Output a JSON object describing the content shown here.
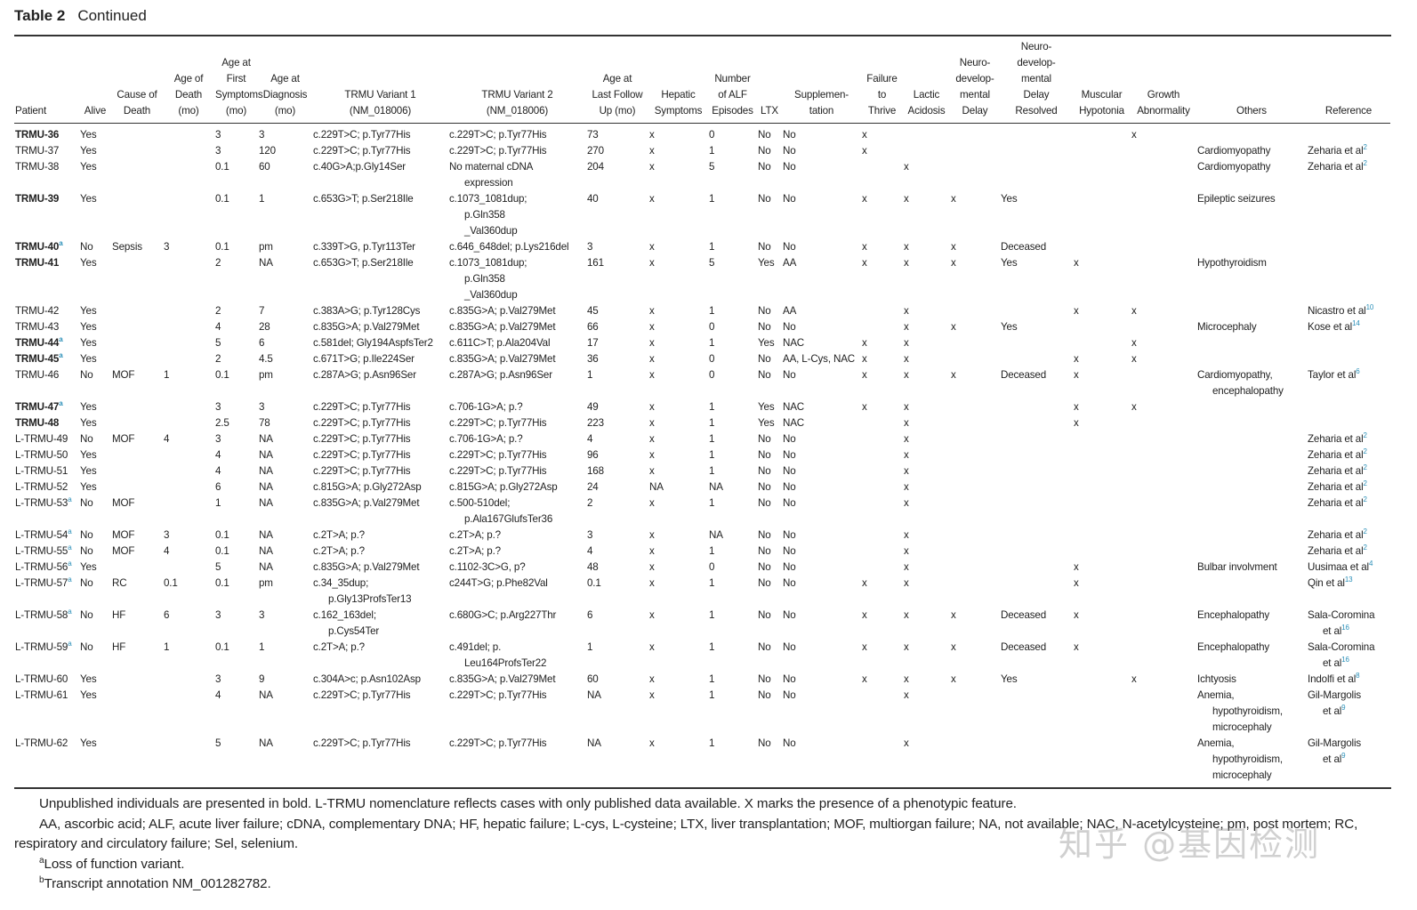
{
  "title": {
    "label": "Table 2",
    "subtitle": "Continued"
  },
  "headers": [
    "Patient",
    "Alive",
    "Cause of\nDeath",
    "Age of\nDeath\n(mo)",
    "Age at\nFirst\nSymptoms\n(mo)",
    "Age at\nDiagnosis\n(mo)",
    "TRMU Variant 1\n(NM_018006)",
    "TRMU Variant 2\n(NM_018006)",
    "Age at\nLast Follow\nUp (mo)",
    "Hepatic\nSymptoms",
    "Number\nof ALF\nEpisodes",
    "LTX",
    "Supplemen-\ntation",
    "Failure\nto\nThrive",
    "Lactic\nAcidosis",
    "Neuro-\ndevelop-\nmental\nDelay",
    "Neuro-\ndevelop-\nmental\nDelay\nResolved",
    "Muscular\nHypotonia",
    "Growth\nAbnormality",
    "Others",
    "Reference"
  ],
  "rows": [
    {
      "patient": "TRMU-36",
      "bold": true,
      "sup": "",
      "cells": [
        "Yes",
        "",
        "",
        "3",
        "3",
        "c.229T>C; p.Tyr77His",
        "c.229T>C; p.Tyr77His",
        "73",
        "x",
        "0",
        "No",
        "No",
        "x",
        "",
        "",
        "",
        "",
        "x",
        ""
      ],
      "ref": "",
      "ref_sup": ""
    },
    {
      "patient": "TRMU-37",
      "bold": false,
      "sup": "",
      "cells": [
        "Yes",
        "",
        "",
        "3",
        "120",
        "c.229T>C; p.Tyr77His",
        "c.229T>C; p.Tyr77His",
        "270",
        "x",
        "1",
        "No",
        "No",
        "x",
        "",
        "",
        "",
        "",
        "",
        "Cardiomyopathy"
      ],
      "ref": "Zeharia et al",
      "ref_sup": "2"
    },
    {
      "patient": "TRMU-38",
      "bold": false,
      "sup": "",
      "cells": [
        "Yes",
        "",
        "",
        "0.1",
        "60",
        "c.40G>A;p.Gly14Ser",
        "No maternal cDNA\nexpression",
        "204",
        "x",
        "5",
        "No",
        "No",
        "",
        "x",
        "",
        "",
        "",
        "",
        "Cardiomyopathy"
      ],
      "ref": "Zeharia et al",
      "ref_sup": "2"
    },
    {
      "patient": "TRMU-39",
      "bold": true,
      "sup": "",
      "cells": [
        "Yes",
        "",
        "",
        "0.1",
        "1",
        "c.653G>T; p.Ser218Ile",
        "c.1073_1081dup;\np.Gln358\n_Val360dup",
        "40",
        "x",
        "1",
        "No",
        "No",
        "x",
        "x",
        "x",
        "Yes",
        "",
        "",
        "Epileptic seizures"
      ],
      "ref": "",
      "ref_sup": ""
    },
    {
      "patient": "TRMU-40",
      "bold": true,
      "sup": "a",
      "cells": [
        "No",
        "Sepsis",
        "3",
        "0.1",
        "pm",
        "c.339T>G, p.Tyr113Ter",
        "c.646_648del; p.Lys216del",
        "3",
        "x",
        "1",
        "No",
        "No",
        "x",
        "x",
        "x",
        "Deceased",
        "",
        "",
        ""
      ],
      "ref": "",
      "ref_sup": ""
    },
    {
      "patient": "TRMU-41",
      "bold": true,
      "sup": "",
      "cells": [
        "Yes",
        "",
        "",
        "2",
        "NA",
        "c.653G>T; p.Ser218Ile",
        "c.1073_1081dup;\np.Gln358\n_Val360dup",
        "161",
        "x",
        "5",
        "Yes",
        "AA",
        "x",
        "x",
        "x",
        "Yes",
        "x",
        "",
        "Hypothyroidism"
      ],
      "ref": "",
      "ref_sup": ""
    },
    {
      "patient": "TRMU-42",
      "bold": false,
      "sup": "",
      "cells": [
        "Yes",
        "",
        "",
        "2",
        "7",
        "c.383A>G; p.Tyr128Cys",
        "c.835G>A; p.Val279Met",
        "45",
        "x",
        "1",
        "No",
        "AA",
        "",
        "x",
        "",
        "",
        "x",
        "x",
        ""
      ],
      "ref": "Nicastro et al",
      "ref_sup": "10"
    },
    {
      "patient": "TRMU-43",
      "bold": false,
      "sup": "",
      "cells": [
        "Yes",
        "",
        "",
        "4",
        "28",
        "c.835G>A; p.Val279Met",
        "c.835G>A; p.Val279Met",
        "66",
        "x",
        "0",
        "No",
        "No",
        "",
        "x",
        "x",
        "Yes",
        "",
        "",
        "Microcephaly"
      ],
      "ref": "Kose et al",
      "ref_sup": "14"
    },
    {
      "patient": "TRMU-44",
      "bold": true,
      "sup": "a",
      "cells": [
        "Yes",
        "",
        "",
        "5",
        "6",
        "c.581del; Gly194AspfsTer2",
        "c.611C>T; p.Ala204Val",
        "17",
        "x",
        "1",
        "Yes",
        "NAC",
        "x",
        "x",
        "",
        "",
        "",
        "x",
        ""
      ],
      "ref": "",
      "ref_sup": ""
    },
    {
      "patient": "TRMU-45",
      "bold": true,
      "sup": "a",
      "cells": [
        "Yes",
        "",
        "",
        "2",
        "4.5",
        "c.671T>G; p.Ile224Ser",
        "c.835G>A; p.Val279Met",
        "36",
        "x",
        "0",
        "No",
        "AA, L-Cys, NAC",
        "x",
        "x",
        "",
        "",
        "x",
        "x",
        ""
      ],
      "ref": "",
      "ref_sup": ""
    },
    {
      "patient": "TRMU-46",
      "bold": false,
      "sup": "",
      "cells": [
        "No",
        "MOF",
        "1",
        "0.1",
        "pm",
        "c.287A>G; p.Asn96Ser",
        "c.287A>G; p.Asn96Ser",
        "1",
        "x",
        "0",
        "No",
        "No",
        "x",
        "x",
        "x",
        "Deceased",
        "x",
        "",
        "Cardiomyopathy,\nencephalopathy"
      ],
      "ref": "Taylor et al",
      "ref_sup": "6"
    },
    {
      "patient": "TRMU-47",
      "bold": true,
      "sup": "a",
      "cells": [
        "Yes",
        "",
        "",
        "3",
        "3",
        "c.229T>C; p.Tyr77His",
        "c.706-1G>A; p.?",
        "49",
        "x",
        "1",
        "Yes",
        "NAC",
        "x",
        "x",
        "",
        "",
        "x",
        "x",
        ""
      ],
      "ref": "",
      "ref_sup": ""
    },
    {
      "patient": "TRMU-48",
      "bold": true,
      "sup": "",
      "cells": [
        "Yes",
        "",
        "",
        "2.5",
        "78",
        "c.229T>C; p.Tyr77His",
        "c.229T>C; p.Tyr77His",
        "223",
        "x",
        "1",
        "Yes",
        "NAC",
        "",
        "x",
        "",
        "",
        "x",
        "",
        ""
      ],
      "ref": "",
      "ref_sup": ""
    },
    {
      "patient": "L-TRMU-49",
      "bold": false,
      "sup": "",
      "cells": [
        "No",
        "MOF",
        "4",
        "3",
        "NA",
        "c.229T>C; p.Tyr77His",
        "c.706-1G>A; p.?",
        "4",
        "x",
        "1",
        "No",
        "No",
        "",
        "x",
        "",
        "",
        "",
        "",
        ""
      ],
      "ref": "Zeharia et al",
      "ref_sup": "2"
    },
    {
      "patient": "L-TRMU-50",
      "bold": false,
      "sup": "",
      "cells": [
        "Yes",
        "",
        "",
        "4",
        "NA",
        "c.229T>C; p.Tyr77His",
        "c.229T>C; p.Tyr77His",
        "96",
        "x",
        "1",
        "No",
        "No",
        "",
        "x",
        "",
        "",
        "",
        "",
        ""
      ],
      "ref": "Zeharia et al",
      "ref_sup": "2"
    },
    {
      "patient": "L-TRMU-51",
      "bold": false,
      "sup": "",
      "cells": [
        "Yes",
        "",
        "",
        "4",
        "NA",
        "c.229T>C; p.Tyr77His",
        "c.229T>C; p.Tyr77His",
        "168",
        "x",
        "1",
        "No",
        "No",
        "",
        "x",
        "",
        "",
        "",
        "",
        ""
      ],
      "ref": "Zeharia et al",
      "ref_sup": "2"
    },
    {
      "patient": "L-TRMU-52",
      "bold": false,
      "sup": "",
      "cells": [
        "Yes",
        "",
        "",
        "6",
        "NA",
        "c.815G>A; p.Gly272Asp",
        "c.815G>A; p.Gly272Asp",
        "24",
        "NA",
        "NA",
        "No",
        "No",
        "",
        "x",
        "",
        "",
        "",
        "",
        ""
      ],
      "ref": "Zeharia et al",
      "ref_sup": "2"
    },
    {
      "patient": "L-TRMU-53",
      "bold": false,
      "sup": "a",
      "cells": [
        "No",
        "MOF",
        "",
        "1",
        "NA",
        "c.835G>A; p.Val279Met",
        "c.500-510del;\np.Ala167GlufsTer36",
        "2",
        "x",
        "1",
        "No",
        "No",
        "",
        "x",
        "",
        "",
        "",
        "",
        ""
      ],
      "ref": "Zeharia et al",
      "ref_sup": "2"
    },
    {
      "patient": "L-TRMU-54",
      "bold": false,
      "sup": "a",
      "cells": [
        "No",
        "MOF",
        "3",
        "0.1",
        "NA",
        "c.2T>A; p.?",
        "c.2T>A; p.?",
        "3",
        "x",
        "NA",
        "No",
        "No",
        "",
        "x",
        "",
        "",
        "",
        "",
        ""
      ],
      "ref": "Zeharia et al",
      "ref_sup": "2"
    },
    {
      "patient": "L-TRMU-55",
      "bold": false,
      "sup": "a",
      "cells": [
        "No",
        "MOF",
        "4",
        "0.1",
        "NA",
        "c.2T>A; p.?",
        "c.2T>A; p.?",
        "4",
        "x",
        "1",
        "No",
        "No",
        "",
        "x",
        "",
        "",
        "",
        "",
        ""
      ],
      "ref": "Zeharia et al",
      "ref_sup": "2"
    },
    {
      "patient": "L-TRMU-56",
      "bold": false,
      "sup": "a",
      "cells": [
        "Yes",
        "",
        "",
        "5",
        "NA",
        "c.835G>A; p.Val279Met",
        "c.1102-3C>G, p?",
        "48",
        "x",
        "0",
        "No",
        "No",
        "",
        "x",
        "",
        "",
        "x",
        "",
        "Bulbar involvment"
      ],
      "ref": "Uusimaa et al",
      "ref_sup": "4"
    },
    {
      "patient": "L-TRMU-57",
      "bold": false,
      "sup": "a",
      "cells": [
        "No",
        "RC",
        "0.1",
        "0.1",
        "pm",
        "c.34_35dup;\np.Gly13ProfsTer13",
        "c244T>G; p.Phe82Val",
        "0.1",
        "x",
        "1",
        "No",
        "No",
        "x",
        "x",
        "",
        "",
        "x",
        "",
        ""
      ],
      "ref": "Qin et al",
      "ref_sup": "13"
    },
    {
      "patient": "L-TRMU-58",
      "bold": false,
      "sup": "a",
      "cells": [
        "No",
        "HF",
        "6",
        "3",
        "3",
        "c.162_163del;\np.Cys54Ter",
        "c.680G>C; p.Arg227Thr",
        "6",
        "x",
        "1",
        "No",
        "No",
        "x",
        "x",
        "x",
        "Deceased",
        "x",
        "",
        "Encephalopathy"
      ],
      "ref": "Sala-Coromina\net al",
      "ref_sup": "16"
    },
    {
      "patient": "L-TRMU-59",
      "bold": false,
      "sup": "a",
      "cells": [
        "No",
        "HF",
        "1",
        "0.1",
        "1",
        "c.2T>A; p.?",
        "c.491del; p.\nLeu164ProfsTer22",
        "1",
        "x",
        "1",
        "No",
        "No",
        "x",
        "x",
        "x",
        "Deceased",
        "x",
        "",
        "Encephalopathy"
      ],
      "ref": "Sala-Coromina\net al",
      "ref_sup": "16"
    },
    {
      "patient": "L-TRMU-60",
      "bold": false,
      "sup": "",
      "cells": [
        "Yes",
        "",
        "",
        "3",
        "9",
        "c.304A>c; p.Asn102Asp",
        "c.835G>A; p.Val279Met",
        "60",
        "x",
        "1",
        "No",
        "No",
        "x",
        "x",
        "x",
        "Yes",
        "",
        "x",
        "Ichtyosis"
      ],
      "ref": "Indolfi et al",
      "ref_sup": "8"
    },
    {
      "patient": "L-TRMU-61",
      "bold": false,
      "sup": "",
      "cells": [
        "Yes",
        "",
        "",
        "4",
        "NA",
        "c.229T>C; p.Tyr77His",
        "c.229T>C; p.Tyr77His",
        "NA",
        "x",
        "1",
        "No",
        "No",
        "",
        "x",
        "",
        "",
        "",
        "",
        "Anemia,\nhypothyroidism,\nmicrocephaly"
      ],
      "ref": "Gil-Margolis\net al",
      "ref_sup": "9"
    },
    {
      "patient": "L-TRMU-62",
      "bold": false,
      "sup": "",
      "cells": [
        "Yes",
        "",
        "",
        "5",
        "NA",
        "c.229T>C; p.Tyr77His",
        "c.229T>C; p.Tyr77His",
        "NA",
        "x",
        "1",
        "No",
        "No",
        "",
        "x",
        "",
        "",
        "",
        "",
        "Anemia,\nhypothyroidism,\nmicrocephaly"
      ],
      "ref": "Gil-Margolis\net al",
      "ref_sup": "9"
    }
  ],
  "footnotes": {
    "line1": "Unpublished individuals are presented in bold. L-TRMU nomenclature reflects cases with only published data available. X marks the presence of a phenotypic feature.",
    "line2": "AA, ascorbic acid; ALF, acute liver failure; cDNA, complementary DNA; HF, hepatic failure; L-cys, L-cysteine; LTX, liver transplantation; MOF, multiorgan failure; NA, not available; NAC, N-acetylcysteine; pm, post mortem; RC, respiratory and circulatory failure; Sel, selenium.",
    "a_mark": "a",
    "a_text": "Loss of function variant.",
    "b_mark": "b",
    "b_text": "Transcript annotation NM_001282782."
  },
  "watermark": "知乎 @基因检测",
  "colors": {
    "superscript": "#2a8fb8",
    "rule": "#333333"
  }
}
